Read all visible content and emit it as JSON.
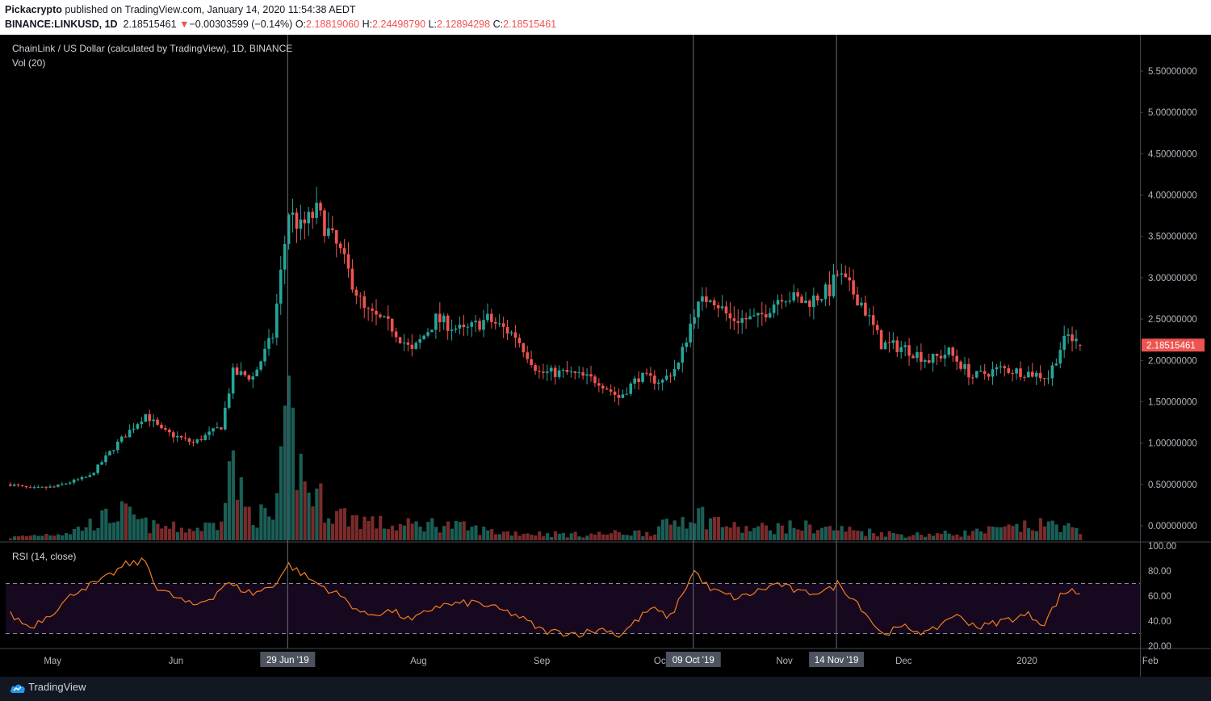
{
  "header": {
    "author": "Pickacrypto",
    "published": " published on TradingView.com, January 14, 2020 11:54:38 AEDT",
    "symbol": "BINANCE:LINKUSD, 1D",
    "last": "2.18515461",
    "change_arrow": "▼",
    "change": "−0.00303599 (−0.14%)",
    "o_label": "O:",
    "o_value": "2.18819060",
    "h_label": "H:",
    "h_value": "2.24498790",
    "l_label": "L:",
    "l_value": "2.12894298",
    "c_label": "C:",
    "c_value": "2.18515461"
  },
  "chart_data": {
    "type": "candlestick",
    "title": "ChainLink / US Dollar (calculated by TradingView), 1D, BINANCE",
    "volume_label": "Vol (20)",
    "rsi_label": "RSI (14, close)",
    "start_date": "2019-04-20",
    "price_axis": {
      "min": -0.05,
      "max": 5.85,
      "ticks": [
        "5.50000000",
        "5.00000000",
        "4.50000000",
        "4.00000000",
        "3.50000000",
        "3.00000000",
        "2.50000000",
        "2.00000000",
        "1.50000000",
        "1.00000000",
        "0.50000000",
        "0.00000000"
      ]
    },
    "rsi_axis": {
      "min": 17,
      "max": 100,
      "ticks": [
        "100.00",
        "80.00",
        "60.00",
        "40.00",
        "20.00"
      ],
      "band": [
        30,
        70
      ]
    },
    "last_price_label": "2.18515461",
    "x_labels": [
      {
        "date": "2019-05-01",
        "label": "May"
      },
      {
        "date": "2019-06-01",
        "label": "Jun"
      },
      {
        "date": "2019-08-01",
        "label": "Aug"
      },
      {
        "date": "2019-09-01",
        "label": "Sep"
      },
      {
        "date": "2019-10-01",
        "label": "Oct"
      },
      {
        "date": "2019-11-01",
        "label": "Nov"
      },
      {
        "date": "2019-12-01",
        "label": "Dec"
      },
      {
        "date": "2020-01-01",
        "label": "2020"
      },
      {
        "date": "2020-02-01",
        "label": "Feb"
      }
    ],
    "markers": [
      {
        "date": "2019-06-29",
        "label": "29 Jun '19"
      },
      {
        "date": "2019-10-09",
        "label": "09 Oct '19"
      },
      {
        "date": "2019-11-14",
        "label": "14 Nov '19"
      }
    ],
    "close_keypoints": [
      [
        "2019-04-20",
        0.5
      ],
      [
        "2019-04-25",
        0.45
      ],
      [
        "2019-05-01",
        0.47
      ],
      [
        "2019-05-10",
        0.6
      ],
      [
        "2019-05-17",
        1.0
      ],
      [
        "2019-05-24",
        1.35
      ],
      [
        "2019-05-28",
        1.15
      ],
      [
        "2019-06-05",
        1.0
      ],
      [
        "2019-06-12",
        1.2
      ],
      [
        "2019-06-15",
        1.85
      ],
      [
        "2019-06-20",
        1.8
      ],
      [
        "2019-06-25",
        2.3
      ],
      [
        "2019-06-29",
        3.8
      ],
      [
        "2019-07-02",
        3.6
      ],
      [
        "2019-07-06",
        3.8
      ],
      [
        "2019-07-12",
        3.3
      ],
      [
        "2019-07-18",
        2.6
      ],
      [
        "2019-07-25",
        2.4
      ],
      [
        "2019-07-30",
        2.1
      ],
      [
        "2019-08-05",
        2.5
      ],
      [
        "2019-08-12",
        2.35
      ],
      [
        "2019-08-18",
        2.5
      ],
      [
        "2019-08-25",
        2.3
      ],
      [
        "2019-08-31",
        1.85
      ],
      [
        "2019-09-07",
        1.85
      ],
      [
        "2019-09-15",
        1.75
      ],
      [
        "2019-09-20",
        1.55
      ],
      [
        "2019-09-25",
        1.8
      ],
      [
        "2019-10-01",
        1.75
      ],
      [
        "2019-10-05",
        1.95
      ],
      [
        "2019-10-09",
        2.6
      ],
      [
        "2019-10-13",
        2.8
      ],
      [
        "2019-10-18",
        2.5
      ],
      [
        "2019-10-25",
        2.5
      ],
      [
        "2019-10-31",
        2.8
      ],
      [
        "2019-11-06",
        2.7
      ],
      [
        "2019-11-12",
        2.85
      ],
      [
        "2019-11-14",
        3.05
      ],
      [
        "2019-11-20",
        2.7
      ],
      [
        "2019-11-25",
        2.2
      ],
      [
        "2019-12-01",
        2.15
      ],
      [
        "2019-12-07",
        2.0
      ],
      [
        "2019-12-12",
        2.1
      ],
      [
        "2019-12-18",
        1.8
      ],
      [
        "2019-12-25",
        1.9
      ],
      [
        "2020-01-01",
        1.85
      ],
      [
        "2020-01-06",
        1.8
      ],
      [
        "2020-01-09",
        2.15
      ],
      [
        "2020-01-11",
        2.3
      ],
      [
        "2020-01-14",
        2.185
      ]
    ],
    "rsi_keypoints": [
      [
        "2019-04-20",
        45
      ],
      [
        "2019-04-25",
        35
      ],
      [
        "2019-05-01",
        48
      ],
      [
        "2019-05-07",
        65
      ],
      [
        "2019-05-13",
        72
      ],
      [
        "2019-05-19",
        85
      ],
      [
        "2019-05-24",
        88
      ],
      [
        "2019-05-27",
        66
      ],
      [
        "2019-06-05",
        52
      ],
      [
        "2019-06-10",
        60
      ],
      [
        "2019-06-13",
        70
      ],
      [
        "2019-06-15",
        68
      ],
      [
        "2019-06-20",
        62
      ],
      [
        "2019-06-25",
        68
      ],
      [
        "2019-06-29",
        85
      ],
      [
        "2019-07-05",
        72
      ],
      [
        "2019-07-12",
        60
      ],
      [
        "2019-07-18",
        45
      ],
      [
        "2019-07-25",
        48
      ],
      [
        "2019-07-30",
        40
      ],
      [
        "2019-08-05",
        52
      ],
      [
        "2019-08-15",
        55
      ],
      [
        "2019-08-25",
        45
      ],
      [
        "2019-09-01",
        32
      ],
      [
        "2019-09-10",
        30
      ],
      [
        "2019-09-17",
        34
      ],
      [
        "2019-09-20",
        28
      ],
      [
        "2019-09-28",
        50
      ],
      [
        "2019-10-03",
        43
      ],
      [
        "2019-10-06",
        62
      ],
      [
        "2019-10-09",
        80
      ],
      [
        "2019-10-13",
        65
      ],
      [
        "2019-10-20",
        58
      ],
      [
        "2019-10-30",
        70
      ],
      [
        "2019-11-05",
        62
      ],
      [
        "2019-11-12",
        65
      ],
      [
        "2019-11-14",
        70
      ],
      [
        "2019-11-19",
        55
      ],
      [
        "2019-11-25",
        30
      ],
      [
        "2019-12-01",
        35
      ],
      [
        "2019-12-07",
        30
      ],
      [
        "2019-12-13",
        45
      ],
      [
        "2019-12-20",
        35
      ],
      [
        "2019-12-25",
        40
      ],
      [
        "2020-01-01",
        45
      ],
      [
        "2020-01-05",
        38
      ],
      [
        "2020-01-09",
        60
      ],
      [
        "2020-01-12",
        66
      ],
      [
        "2020-01-14",
        60
      ]
    ],
    "volume_keypoints": [
      [
        "2019-04-20",
        0.02
      ],
      [
        "2019-05-05",
        0.06
      ],
      [
        "2019-05-12",
        0.14
      ],
      [
        "2019-05-18",
        0.2
      ],
      [
        "2019-05-25",
        0.1
      ],
      [
        "2019-06-05",
        0.08
      ],
      [
        "2019-06-11",
        0.12
      ],
      [
        "2019-06-14",
        0.6
      ],
      [
        "2019-06-18",
        0.22
      ],
      [
        "2019-06-25",
        0.15
      ],
      [
        "2019-06-27",
        0.45
      ],
      [
        "2019-06-29",
        0.85
      ],
      [
        "2019-07-03",
        0.4
      ],
      [
        "2019-07-10",
        0.2
      ],
      [
        "2019-07-25",
        0.1
      ],
      [
        "2019-08-05",
        0.12
      ],
      [
        "2019-08-20",
        0.06
      ],
      [
        "2019-09-10",
        0.04
      ],
      [
        "2019-09-28",
        0.06
      ],
      [
        "2019-10-09",
        0.2
      ],
      [
        "2019-10-20",
        0.08
      ],
      [
        "2019-11-05",
        0.1
      ],
      [
        "2019-11-14",
        0.08
      ],
      [
        "2019-12-01",
        0.04
      ],
      [
        "2019-12-15",
        0.05
      ],
      [
        "2020-01-09",
        0.12
      ],
      [
        "2020-01-14",
        0.05
      ]
    ],
    "colors": {
      "up": "#26a69a",
      "down": "#ef5350",
      "volume_up": "#1b5e56",
      "volume_down": "#7a2b2b",
      "rsi": "#f57c1f",
      "rsi_band": "#16081f",
      "last_price_bg": "#ef5350"
    }
  },
  "footer": {
    "brand": "TradingView"
  }
}
